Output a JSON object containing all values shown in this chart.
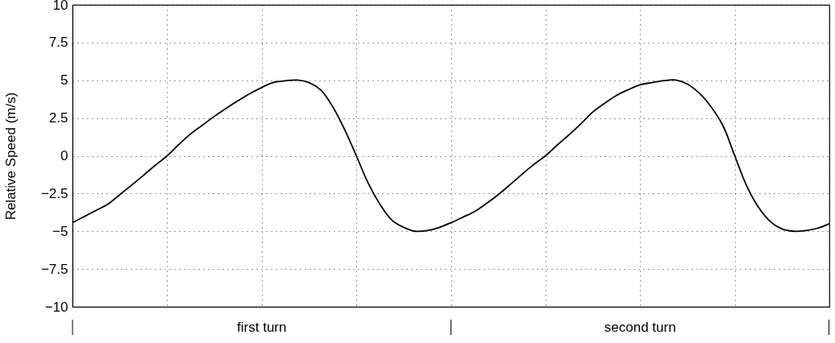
{
  "chart_data": {
    "type": "line",
    "ylabel": "Relative Speed (m/s)",
    "color": "#000000",
    "categories": [
      null,
      null,
      null,
      null,
      null,
      null,
      null,
      null,
      null,
      null,
      null,
      null,
      null,
      null,
      null,
      null,
      null,
      null,
      null,
      null,
      null,
      null,
      null,
      null,
      null,
      null,
      null,
      null,
      null,
      null,
      null,
      null,
      null,
      null,
      null,
      null,
      null,
      null,
      null,
      null,
      null,
      null,
      null,
      null,
      null,
      null,
      null,
      null,
      null,
      null,
      null,
      null,
      null,
      null,
      null,
      null,
      null,
      null,
      null,
      null,
      null,
      null,
      null,
      null,
      null
    ],
    "values": [
      -4.43,
      -4.02,
      -3.61,
      -3.2,
      -2.57,
      -1.94,
      -1.29,
      -0.63,
      0,
      0.76,
      1.46,
      2.04,
      2.62,
      3.15,
      3.65,
      4.12,
      4.53,
      4.86,
      4.97,
      5.02,
      4.85,
      4.35,
      3.25,
      1.75,
      0,
      -1.81,
      -3.21,
      -4.26,
      -4.74,
      -5.0,
      -4.95,
      -4.75,
      -4.43,
      -4.07,
      -3.69,
      -3.16,
      -2.57,
      -1.91,
      -1.23,
      -0.58,
      0,
      0.72,
      1.4,
      2.13,
      2.9,
      3.48,
      4.0,
      4.38,
      4.7,
      4.85,
      4.98,
      5.02,
      4.75,
      4.15,
      3.24,
      2.0,
      0,
      -1.98,
      -3.4,
      -4.35,
      -4.85,
      -5.0,
      -4.95,
      -4.8,
      -4.5
    ],
    "ylim": [
      -10,
      10
    ],
    "yticks": [
      {
        "value": -10,
        "label": "−10"
      },
      {
        "value": -7.5,
        "label": "−7.5"
      },
      {
        "value": -5,
        "label": "−5"
      },
      {
        "value": -2.5,
        "label": "−2.5"
      },
      0,
      2.5,
      5,
      7.5,
      10
    ],
    "grid": true,
    "tick_labels": "y",
    "annotations": [
      "first turn",
      "second turn"
    ]
  }
}
